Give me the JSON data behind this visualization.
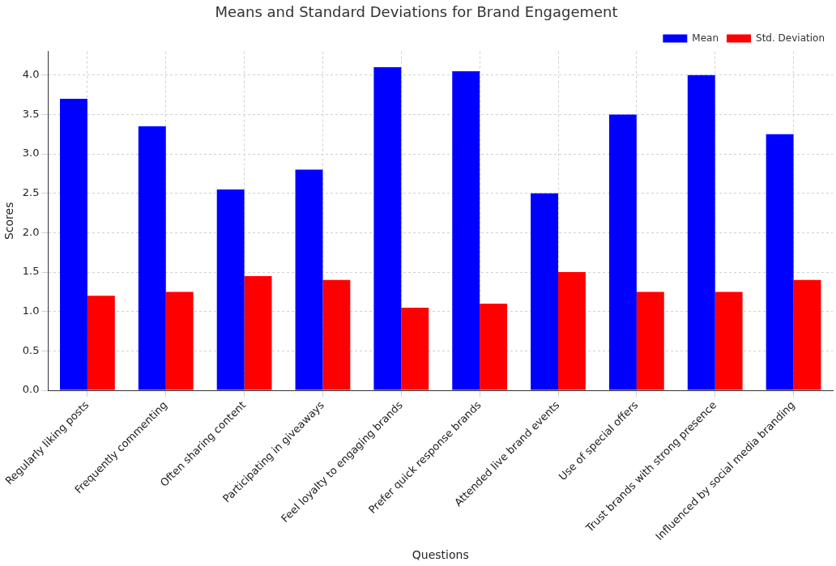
{
  "chart_data": {
    "type": "bar",
    "title": "Means and Standard Deviations for Brand Engagement",
    "xlabel": "Questions",
    "ylabel": "Scores",
    "categories": [
      "Regularly liking posts",
      "Frequently commenting",
      "Often sharing content",
      "Participating in giveaways",
      "Feel loyalty to engaging brands",
      "Prefer quick response brands",
      "Attended live brand events",
      "Use of special offers",
      "Trust brands with strong presence",
      "Influenced by social media branding"
    ],
    "series": [
      {
        "name": "Mean",
        "color": "#0000ff",
        "values": [
          3.7,
          3.35,
          2.55,
          2.8,
          4.1,
          4.05,
          2.5,
          3.5,
          4.0,
          3.25
        ]
      },
      {
        "name": "Std. Deviation",
        "color": "#ff0000",
        "values": [
          1.2,
          1.25,
          1.45,
          1.4,
          1.05,
          1.1,
          1.5,
          1.25,
          1.25,
          1.4
        ]
      }
    ],
    "ylim": [
      0,
      4.3
    ],
    "yticks": [
      {
        "value": 0,
        "label": "0.0"
      },
      0.5,
      {
        "value": 1,
        "label": "1.0"
      },
      1.5,
      {
        "value": 2,
        "label": "2.0"
      },
      2.5,
      {
        "value": 3,
        "label": "3.0"
      },
      3.5,
      {
        "value": 4,
        "label": "4.0"
      }
    ],
    "grid": true,
    "legend": "top right"
  }
}
